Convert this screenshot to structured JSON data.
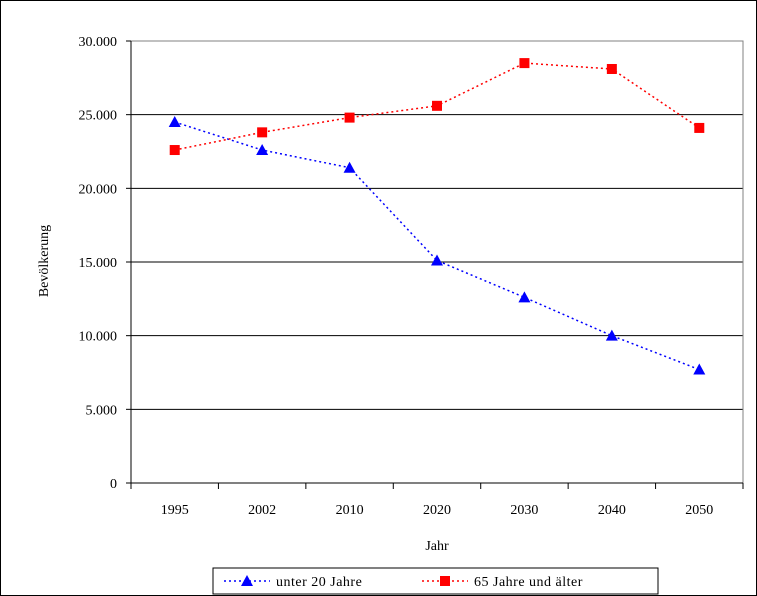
{
  "chart_data": {
    "type": "line",
    "title": "",
    "xlabel": "Jahr",
    "ylabel": "Bevölkerung",
    "categories": [
      "1995",
      "2002",
      "2010",
      "2020",
      "2030",
      "2040",
      "2050"
    ],
    "ylim": [
      0,
      30000
    ],
    "yticks": [
      0,
      5000,
      10000,
      15000,
      20000,
      25000,
      30000
    ],
    "ytick_labels": [
      "0",
      "5.000",
      "10.000",
      "15.000",
      "20.000",
      "25.000",
      "30.000"
    ],
    "grid": "horizontal",
    "legend_position": "bottom",
    "series": [
      {
        "name": "unter 20 Jahre",
        "values": [
          24500,
          22600,
          21400,
          15100,
          12600,
          10000,
          7700
        ],
        "color": "#0000ff",
        "marker": "triangle",
        "line_style": "dotted"
      },
      {
        "name": "65 Jahre und älter",
        "values": [
          22600,
          23800,
          24800,
          25600,
          28500,
          28100,
          24100
        ],
        "color": "#ff0000",
        "marker": "square",
        "line_style": "dotted"
      }
    ]
  }
}
